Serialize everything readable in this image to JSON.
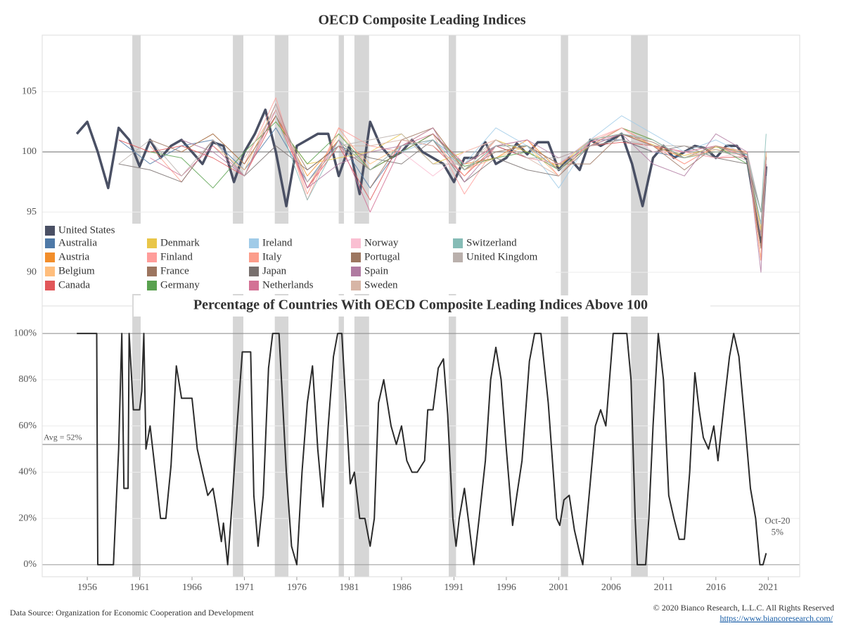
{
  "chart_data": [
    {
      "type": "line",
      "title": "OECD Composite Leading Indices",
      "xlim": [
        1951.7,
        2024
      ],
      "ylim": [
        87.2,
        109.7
      ],
      "yticks": [
        90,
        95,
        100,
        105
      ],
      "reference": 100,
      "grid": true,
      "legend": true,
      "x": [
        1956,
        1959,
        1962,
        1965,
        1968,
        1971,
        1974,
        1977,
        1980,
        1983,
        1986,
        1989,
        1992,
        1995,
        1998,
        2001,
        2004,
        2007,
        2010,
        2013,
        2016,
        2019,
        2020.3,
        2020.8
      ],
      "series": [
        {
          "name": "United States",
          "color": "#4a5064",
          "emphasis": true,
          "x": [
            1955,
            1956,
            1957,
            1958,
            1959,
            1960,
            1961,
            1962,
            1963,
            1964,
            1965,
            1966,
            1967,
            1968,
            1969,
            1970,
            1971,
            1972,
            1973,
            1974,
            1975,
            1976,
            1977,
            1978,
            1979,
            1980,
            1981,
            1982,
            1983,
            1984,
            1985,
            1986,
            1987,
            1988,
            1989,
            1990,
            1991,
            1992,
            1993,
            1994,
            1995,
            1996,
            1997,
            1998,
            1999,
            2000,
            2001,
            2002,
            2003,
            2004,
            2005,
            2006,
            2007,
            2008,
            2009,
            2010,
            2011,
            2012,
            2013,
            2014,
            2015,
            2016,
            2017,
            2018,
            2019,
            2020.3,
            2020.8
          ],
          "values": [
            101.5,
            102.5,
            100,
            97,
            102,
            101,
            98.8,
            101,
            99.5,
            100.5,
            101,
            100,
            99,
            100.8,
            100.5,
            97.5,
            100,
            101.5,
            103.5,
            100,
            95.5,
            100.5,
            101,
            101.5,
            101.5,
            98,
            100.5,
            96.5,
            102.5,
            100.5,
            99.5,
            100,
            101,
            100,
            99.5,
            99,
            97.5,
            99.5,
            99.5,
            100.8,
            99,
            99.5,
            100.7,
            99.8,
            100.8,
            100.8,
            98.5,
            99.5,
            98.5,
            101,
            100.5,
            101,
            101.5,
            99,
            95.5,
            99.5,
            100.5,
            99.5,
            100,
            100.5,
            100.3,
            99.5,
            100.5,
            100.5,
            99.3,
            92.5,
            98.8
          ]
        },
        {
          "name": "Australia",
          "color": "#4e79a7",
          "values": [
            null,
            101,
            99,
            100.5,
            101,
            98.5,
            102,
            97.5,
            101,
            97,
            100.5,
            101,
            99,
            100.5,
            99.5,
            99,
            101,
            101,
            100,
            99.5,
            100.5,
            99.5,
            95,
            99.5
          ]
        },
        {
          "name": "Austria",
          "color": "#f28e2b",
          "values": [
            null,
            null,
            null,
            100,
            101.5,
            99,
            103,
            98,
            101,
            98.5,
            100,
            101.5,
            99,
            99.5,
            101,
            98.5,
            100.5,
            102,
            100.5,
            99.5,
            100,
            99.8,
            91,
            99.8
          ]
        },
        {
          "name": "Belgium",
          "color": "#ffbe7d",
          "values": [
            null,
            null,
            null,
            null,
            100.5,
            98.5,
            104,
            97,
            101.5,
            99,
            100.5,
            102,
            98.5,
            99.5,
            100.5,
            98,
            101,
            102,
            101,
            99.5,
            100.2,
            99.9,
            93,
            99.7
          ]
        },
        {
          "name": "Canada",
          "color": "#e15759",
          "values": [
            null,
            101,
            100,
            100.5,
            99.5,
            98,
            103,
            97,
            100.5,
            96,
            101,
            100.5,
            98,
            100.5,
            99.5,
            99,
            100.5,
            100.8,
            100.5,
            100,
            99.5,
            99.6,
            94,
            100
          ]
        },
        {
          "name": "Denmark",
          "color": "#e9c649",
          "values": [
            null,
            null,
            null,
            null,
            null,
            null,
            102.5,
            99,
            99.5,
            100,
            101.5,
            99,
            100,
            101,
            100,
            98.8,
            101,
            101.5,
            100.6,
            99.7,
            100.4,
            100,
            93.5,
            99.9
          ]
        },
        {
          "name": "Finland",
          "color": "#ff9d9a",
          "values": [
            null,
            null,
            null,
            null,
            null,
            99,
            104.5,
            96,
            102,
            100.5,
            100,
            101.5,
            96.5,
            100.5,
            101,
            98,
            100.8,
            102,
            100.5,
            99,
            100.5,
            99.5,
            95,
            99.5
          ]
        },
        {
          "name": "France",
          "color": "#9c755f",
          "values": [
            null,
            null,
            101,
            100,
            101.5,
            99,
            103,
            98.5,
            100.5,
            98.5,
            100,
            101.5,
            98.5,
            100,
            100.5,
            99,
            100.5,
            101.5,
            100.8,
            99.5,
            100.5,
            99.5,
            92,
            99
          ]
        },
        {
          "name": "Germany",
          "color": "#59a14f",
          "values": [
            null,
            null,
            100,
            99.5,
            97,
            100,
            102.5,
            99,
            101.5,
            98.5,
            100,
            101.5,
            98.8,
            99.5,
            100,
            98.5,
            100.5,
            102,
            101,
            99.5,
            100.5,
            99,
            94,
            99.5
          ]
        },
        {
          "name": "Ireland",
          "color": "#a0cbe8",
          "values": [
            null,
            null,
            null,
            null,
            null,
            null,
            null,
            null,
            null,
            null,
            100,
            101,
            99,
            102,
            100.5,
            97,
            101,
            103,
            101.5,
            100,
            101,
            99.7,
            94,
            98.5
          ]
        },
        {
          "name": "Italy",
          "color": "#fc9d8b",
          "values": [
            null,
            null,
            100.5,
            97.5,
            101,
            98,
            104,
            96.5,
            102,
            98.5,
            100.5,
            101,
            98,
            101,
            99.5,
            99,
            100.5,
            102,
            100.5,
            99,
            100.5,
            100,
            91,
            99
          ]
        },
        {
          "name": "Japan",
          "color": "#79706e",
          "values": [
            null,
            99,
            98.5,
            97.5,
            101,
            98,
            100.5,
            98.5,
            100.5,
            99.5,
            99,
            101,
            97.5,
            99.5,
            98.5,
            98,
            100.5,
            101,
            100,
            100.5,
            99.5,
            99,
            95,
            98.5
          ]
        },
        {
          "name": "Netherlands",
          "color": "#d37295",
          "values": [
            null,
            null,
            99.5,
            98,
            100.5,
            98,
            103.5,
            97,
            101,
            95,
            100.5,
            101.5,
            99,
            100.5,
            100.5,
            98.5,
            100.8,
            101.5,
            100.5,
            100,
            100.5,
            99.6,
            93,
            99.5
          ]
        },
        {
          "name": "Norway",
          "color": "#fabfd2",
          "values": [
            null,
            null,
            null,
            null,
            null,
            null,
            null,
            null,
            null,
            null,
            100,
            98,
            100,
            101,
            99.5,
            99,
            101,
            102,
            100,
            100,
            99.5,
            100,
            95,
            99.5
          ]
        },
        {
          "name": "Portugal",
          "color": "#9d7660",
          "values": [
            null,
            null,
            null,
            null,
            null,
            null,
            null,
            null,
            null,
            97,
            101,
            102,
            98.5,
            100.5,
            100.5,
            99,
            99,
            101.5,
            100.5,
            98.5,
            100.5,
            99.8,
            92,
            99.6
          ]
        },
        {
          "name": "Spain",
          "color": "#b07aa1",
          "values": [
            null,
            null,
            null,
            101,
            100,
            98,
            104,
            97,
            99,
            100,
            100.5,
            102,
            97.5,
            100.5,
            101,
            99.5,
            100.5,
            101.5,
            99,
            98,
            101.5,
            100,
            90,
            99
          ]
        },
        {
          "name": "Sweden",
          "color": "#d7b5a6",
          "values": [
            null,
            null,
            null,
            null,
            null,
            99.5,
            103.5,
            97.5,
            100.5,
            100.5,
            101,
            100.5,
            98.5,
            101,
            99.5,
            98,
            101,
            101.5,
            101,
            99.5,
            100.5,
            99.5,
            95,
            100
          ]
        },
        {
          "name": "Switzerland",
          "color": "#86bcb6",
          "values": [
            null,
            null,
            null,
            null,
            null,
            null,
            103,
            96,
            101,
            98.5,
            100.5,
            101,
            98.5,
            100.5,
            100.5,
            98.5,
            101,
            101.5,
            101,
            99.5,
            100,
            99.8,
            95,
            101.5
          ]
        },
        {
          "name": "United Kingdom",
          "color": "#bab0ac",
          "values": [
            null,
            99,
            101,
            98,
            101,
            98,
            104,
            97.5,
            100.5,
            101,
            101.5,
            99,
            99,
            101,
            99.5,
            99.5,
            100.5,
            101,
            100.5,
            100.5,
            100.2,
            99.3,
            93,
            98
          ]
        }
      ]
    },
    {
      "type": "line",
      "title": "Percentage of Countries With OECD Composite Leading Indices Above 100",
      "xlim": [
        1951.7,
        2024
      ],
      "ylim": [
        -5.2,
        111.9
      ],
      "xticks": [
        1956,
        1961,
        1966,
        1971,
        1976,
        1981,
        1986,
        1991,
        1996,
        2001,
        2006,
        2011,
        2016,
        2021
      ],
      "yticks": [
        {
          "value": 0,
          "label": "0%"
        },
        {
          "value": 20,
          "label": "20%"
        },
        {
          "value": 40,
          "label": "40%"
        },
        {
          "value": 60,
          "label": "60%"
        },
        {
          "value": 80,
          "label": "80%"
        },
        {
          "value": 100,
          "label": "100%"
        }
      ],
      "grid": true,
      "average": {
        "value": 52,
        "label": "Avg = 52%"
      },
      "annotation": {
        "x": 2020.8,
        "label": "Oct-20",
        "value": 5,
        "value_label": "5%"
      },
      "x": [
        1955,
        1956.9,
        1957,
        1958.5,
        1959,
        1959.3,
        1959.5,
        1959.9,
        1960,
        1960.4,
        1961,
        1961.2,
        1961.4,
        1961.6,
        1962,
        1962.5,
        1963,
        1963.5,
        1964,
        1964.5,
        1965,
        1966,
        1966.5,
        1967,
        1967.5,
        1968,
        1968.3,
        1968.8,
        1969,
        1969.4,
        1969.8,
        1970.3,
        1970.8,
        1971.6,
        1971.9,
        1972.3,
        1972.8,
        1973.3,
        1973.7,
        1974.3,
        1975,
        1975.5,
        1976,
        1976.5,
        1977,
        1977.5,
        1978,
        1978.5,
        1979,
        1979.5,
        1979.9,
        1980.3,
        1980.8,
        1981.1,
        1981.5,
        1982,
        1982.5,
        1983,
        1983.4,
        1983.8,
        1984.3,
        1985,
        1985.5,
        1986,
        1986.5,
        1987,
        1987.5,
        1988.2,
        1988.5,
        1989,
        1989.5,
        1990,
        1990.4,
        1990.9,
        1991.2,
        1991.5,
        1992,
        1992.5,
        1992.9,
        1993.4,
        1994,
        1994.5,
        1995,
        1995.5,
        1996,
        1996.6,
        1997,
        1997.5,
        1998.2,
        1998.7,
        1999.3,
        2000,
        2000.8,
        2001.1,
        2001.5,
        2002,
        2002.5,
        2003,
        2003.3,
        2004,
        2004.5,
        2005,
        2005.5,
        2006.2,
        2007.5,
        2007.9,
        2008.3,
        2008.5,
        2009.3,
        2009.6,
        2010,
        2010.5,
        2011,
        2011.5,
        2012,
        2012.5,
        2013,
        2013.5,
        2014,
        2014.4,
        2014.8,
        2015.3,
        2015.8,
        2016.2,
        2016.8,
        2017.3,
        2017.7,
        2018.2,
        2018.8,
        2019.3,
        2019.8,
        2020.2,
        2020.5,
        2020.8
      ],
      "series": [
        {
          "color": "#2b2b2b",
          "values": [
            100,
            100,
            0,
            0,
            50,
            100,
            33,
            33,
            100,
            67,
            67,
            75,
            100,
            50,
            60,
            40,
            20,
            20,
            43,
            86,
            72,
            72,
            50,
            40,
            30,
            33,
            25,
            10,
            18,
            0,
            25,
            60,
            92,
            92,
            30,
            8,
            30,
            85,
            100,
            100,
            40,
            8,
            0,
            40,
            70,
            86,
            50,
            25,
            60,
            90,
            100,
            100,
            60,
            35,
            40,
            20,
            20,
            8,
            20,
            70,
            80,
            60,
            52,
            60,
            45,
            40,
            40,
            45,
            67,
            67,
            85,
            89,
            65,
            20,
            8,
            20,
            33,
            15,
            0,
            20,
            45,
            80,
            94,
            80,
            50,
            17,
            30,
            45,
            88,
            100,
            100,
            70,
            20,
            17,
            28,
            30,
            15,
            5,
            0,
            35,
            60,
            67,
            60,
            100,
            100,
            80,
            20,
            0,
            0,
            20,
            60,
            100,
            80,
            30,
            20,
            11,
            11,
            40,
            83,
            67,
            55,
            50,
            60,
            45,
            70,
            90,
            100,
            90,
            60,
            33,
            20,
            0,
            0,
            5
          ]
        }
      ]
    }
  ],
  "shaded_periods": [
    [
      1960.3,
      1961.1
    ],
    [
      1969.9,
      1970.9
    ],
    [
      1973.9,
      1975.2
    ],
    [
      1980.0,
      1980.5
    ],
    [
      1981.5,
      1982.9
    ],
    [
      1990.5,
      1991.2
    ],
    [
      2001.2,
      2001.9
    ],
    [
      2007.9,
      2009.5
    ]
  ],
  "footer": {
    "source": "Data Source: Organization for Economic Cooperation and Development",
    "copyright": "© 2020 Bianco Research, L.L.C. All Rights Reserved",
    "url": "https://www.biancoresearch.com/"
  }
}
